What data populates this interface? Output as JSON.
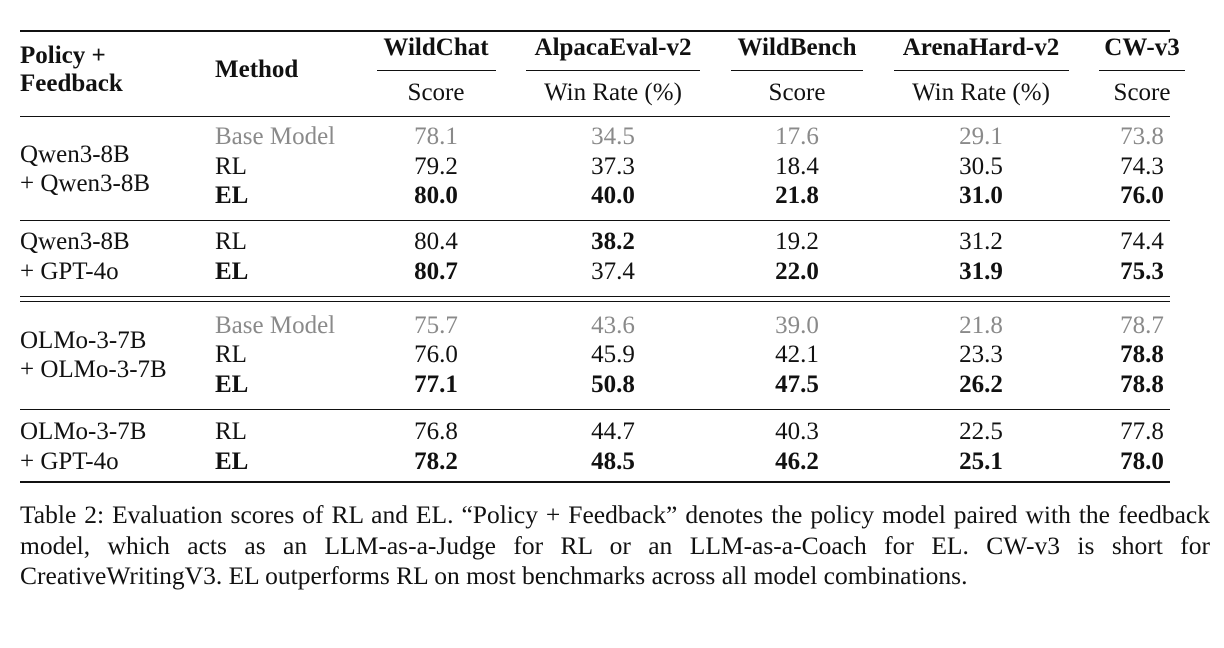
{
  "table": {
    "header": {
      "policy_feedback": [
        "Policy +",
        "Feedback"
      ],
      "method": "Method",
      "benchmarks": [
        {
          "name": "WildChat",
          "metric": "Score"
        },
        {
          "name": "AlpacaEval-v2",
          "metric": "Win Rate (%)"
        },
        {
          "name": "WildBench",
          "metric": "Score"
        },
        {
          "name": "ArenaHard-v2",
          "metric": "Win Rate (%)"
        },
        {
          "name": "CW-v3",
          "metric": "Score"
        }
      ]
    },
    "groups": [
      {
        "policy": [
          "Qwen3-8B",
          "+ Qwen3-8B"
        ],
        "rows": [
          {
            "method": "Base Model",
            "style": "gray",
            "values": [
              "78.1",
              "34.5",
              "17.6",
              "29.1",
              "73.8"
            ],
            "bold": [
              false,
              false,
              false,
              false,
              false
            ]
          },
          {
            "method": "RL",
            "style": "normal",
            "values": [
              "79.2",
              "37.3",
              "18.4",
              "30.5",
              "74.3"
            ],
            "bold": [
              false,
              false,
              false,
              false,
              false
            ]
          },
          {
            "method": "EL",
            "style": "bold",
            "values": [
              "80.0",
              "40.0",
              "21.8",
              "31.0",
              "76.0"
            ],
            "bold": [
              true,
              true,
              true,
              true,
              true
            ]
          }
        ]
      },
      {
        "policy": [
          "Qwen3-8B",
          "+ GPT-4o"
        ],
        "rows": [
          {
            "method": "RL",
            "style": "normal",
            "values": [
              "80.4",
              "38.2",
              "19.2",
              "31.2",
              "74.4"
            ],
            "bold": [
              false,
              true,
              false,
              false,
              false
            ]
          },
          {
            "method": "EL",
            "style": "bold",
            "values": [
              "80.7",
              "37.4",
              "22.0",
              "31.9",
              "75.3"
            ],
            "bold": [
              true,
              false,
              true,
              true,
              true
            ]
          }
        ]
      },
      {
        "policy": [
          "OLMo-3-7B",
          "+ OLMo-3-7B"
        ],
        "rows": [
          {
            "method": "Base Model",
            "style": "gray",
            "values": [
              "75.7",
              "43.6",
              "39.0",
              "21.8",
              "78.7"
            ],
            "bold": [
              false,
              false,
              false,
              false,
              false
            ]
          },
          {
            "method": "RL",
            "style": "normal",
            "values": [
              "76.0",
              "45.9",
              "42.1",
              "23.3",
              "78.8"
            ],
            "bold": [
              false,
              false,
              false,
              false,
              true
            ]
          },
          {
            "method": "EL",
            "style": "bold",
            "values": [
              "77.1",
              "50.8",
              "47.5",
              "26.2",
              "78.8"
            ],
            "bold": [
              true,
              true,
              true,
              true,
              true
            ]
          }
        ]
      },
      {
        "policy": [
          "OLMo-3-7B",
          "+ GPT-4o"
        ],
        "rows": [
          {
            "method": "RL",
            "style": "normal",
            "values": [
              "76.8",
              "44.7",
              "40.3",
              "22.5",
              "77.8"
            ],
            "bold": [
              false,
              false,
              false,
              false,
              false
            ]
          },
          {
            "method": "EL",
            "style": "bold",
            "values": [
              "78.2",
              "48.5",
              "46.2",
              "25.1",
              "78.0"
            ],
            "bold": [
              true,
              true,
              true,
              true,
              true
            ]
          }
        ]
      }
    ]
  },
  "caption": "Table 2: Evaluation scores of RL and EL. “Policy + Feedback” denotes the policy model paired with the feedback model, which acts as an LLM-as-a-Judge for RL or an LLM-as-a-Coach for EL. CW-v3 is short for CreativeWritingV3. EL outperforms RL on most benchmarks across all model combinations."
}
